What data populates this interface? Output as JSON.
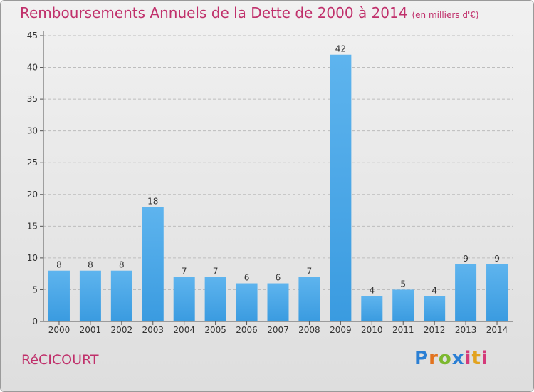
{
  "chart_data": {
    "type": "bar",
    "title": "Remboursements Annuels de la Dette de 2000 à 2014",
    "subtitle": "(en milliers d'€)",
    "categories": [
      "2000",
      "2001",
      "2002",
      "2003",
      "2004",
      "2005",
      "2006",
      "2007",
      "2008",
      "2009",
      "2010",
      "2011",
      "2012",
      "2013",
      "2014"
    ],
    "values": [
      8,
      8,
      8,
      18,
      7,
      7,
      6,
      6,
      7,
      42,
      4,
      5,
      4,
      9,
      9
    ],
    "ylim": [
      0,
      45
    ],
    "yticks": [
      0,
      5,
      10,
      15,
      20,
      25,
      30,
      35,
      40,
      45
    ],
    "grid": "horizontal dashed",
    "bar_color": "#3a9be0"
  },
  "footer": {
    "commune": "RéCICOURT",
    "logo": {
      "p": "P",
      "r": "r",
      "o": "o",
      "x": "x",
      "i": "i",
      "t": "t",
      "i2": "i"
    }
  }
}
